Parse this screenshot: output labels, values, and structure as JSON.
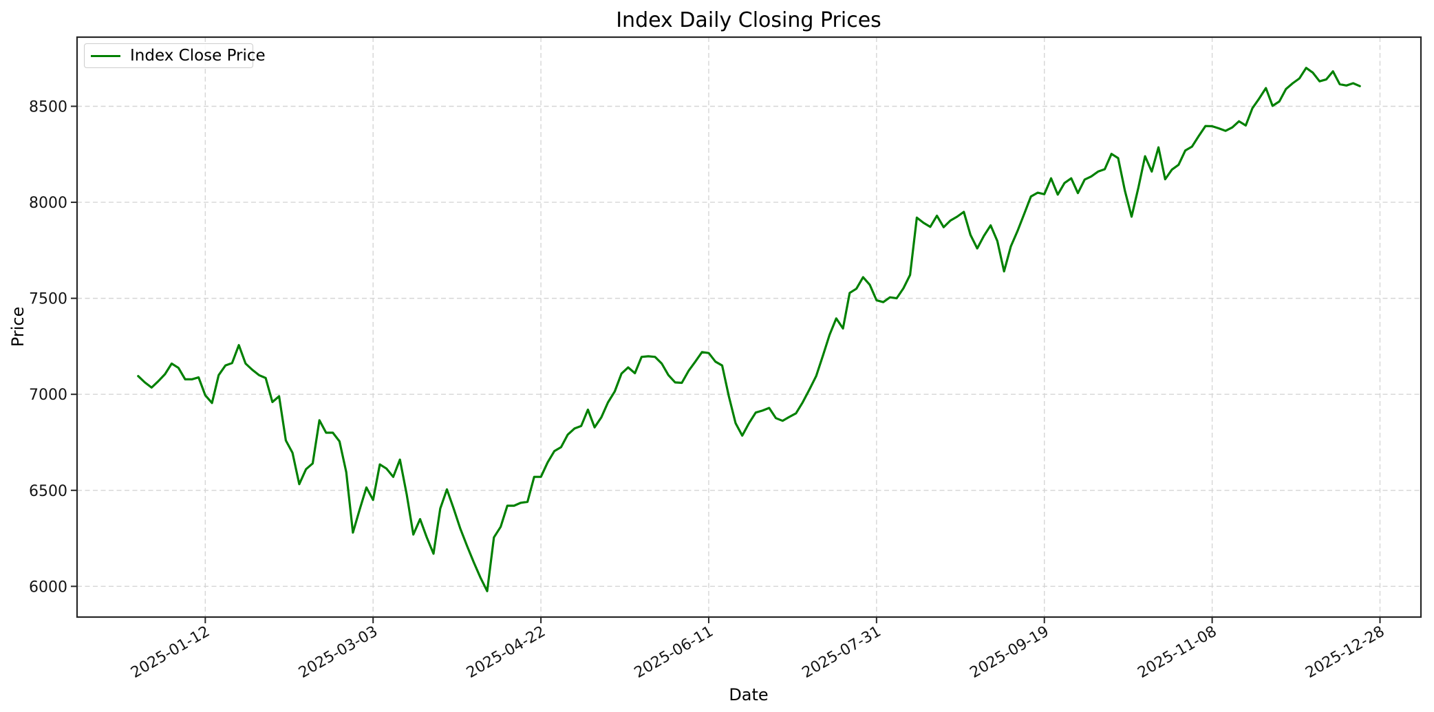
{
  "chart": {
    "title": "Index Daily Closing Prices",
    "xlabel": "Date",
    "ylabel": "Price",
    "legend": {
      "label": "Index Close Price"
    },
    "colors": {
      "line": "#008000",
      "grid": "#d5d5d5",
      "spine": "#262626",
      "tick_text": "#141414",
      "background": "#ffffff",
      "legend_border": "#cccccc"
    }
  },
  "chart_data": {
    "type": "line",
    "title": "Index Daily Closing Prices",
    "xlabel": "Date",
    "ylabel": "Price",
    "legend_position": "upper-left",
    "grid": "dashed-both-axes",
    "x_ticks": [
      "2025-01-12",
      "2025-03-03",
      "2025-04-22",
      "2025-06-11",
      "2025-07-31",
      "2025-09-19",
      "2025-11-08",
      "2025-12-28"
    ],
    "x_tick_rotation_deg": 30,
    "y_ticks": [
      6000,
      6500,
      7000,
      7500,
      8000,
      8500
    ],
    "ylim": [
      5840,
      8860
    ],
    "x_margin_frac": 0.05,
    "series": [
      {
        "name": "Index Close Price",
        "color": "#008000",
        "dates": [
          "2024-12-23",
          "2024-12-25",
          "2024-12-27",
          "2024-12-29",
          "2024-12-31",
          "2025-01-02",
          "2025-01-04",
          "2025-01-06",
          "2025-01-08",
          "2025-01-10",
          "2025-01-12",
          "2025-01-14",
          "2025-01-16",
          "2025-01-18",
          "2025-01-20",
          "2025-01-22",
          "2025-01-24",
          "2025-01-26",
          "2025-01-28",
          "2025-01-30",
          "2025-02-01",
          "2025-02-03",
          "2025-02-05",
          "2025-02-07",
          "2025-02-09",
          "2025-02-11",
          "2025-02-13",
          "2025-02-15",
          "2025-02-17",
          "2025-02-19",
          "2025-02-21",
          "2025-02-23",
          "2025-02-25",
          "2025-02-27",
          "2025-03-01",
          "2025-03-03",
          "2025-03-05",
          "2025-03-07",
          "2025-03-09",
          "2025-03-11",
          "2025-03-13",
          "2025-03-15",
          "2025-03-17",
          "2025-03-19",
          "2025-03-21",
          "2025-03-23",
          "2025-03-25",
          "2025-03-27",
          "2025-03-29",
          "2025-03-31",
          "2025-04-02",
          "2025-04-04",
          "2025-04-06",
          "2025-04-08",
          "2025-04-10",
          "2025-04-12",
          "2025-04-14",
          "2025-04-16",
          "2025-04-18",
          "2025-04-20",
          "2025-04-22",
          "2025-04-24",
          "2025-04-26",
          "2025-04-28",
          "2025-04-30",
          "2025-05-02",
          "2025-05-04",
          "2025-05-06",
          "2025-05-08",
          "2025-05-10",
          "2025-05-12",
          "2025-05-14",
          "2025-05-16",
          "2025-05-18",
          "2025-05-20",
          "2025-05-22",
          "2025-05-24",
          "2025-05-26",
          "2025-05-28",
          "2025-05-30",
          "2025-06-01",
          "2025-06-03",
          "2025-06-05",
          "2025-06-07",
          "2025-06-09",
          "2025-06-11",
          "2025-06-13",
          "2025-06-15",
          "2025-06-17",
          "2025-06-19",
          "2025-06-21",
          "2025-06-23",
          "2025-06-25",
          "2025-06-27",
          "2025-06-29",
          "2025-07-01",
          "2025-07-03",
          "2025-07-05",
          "2025-07-07",
          "2025-07-09",
          "2025-07-11",
          "2025-07-13",
          "2025-07-15",
          "2025-07-17",
          "2025-07-19",
          "2025-07-21",
          "2025-07-23",
          "2025-07-25",
          "2025-07-27",
          "2025-07-29",
          "2025-07-31",
          "2025-08-02",
          "2025-08-04",
          "2025-08-06",
          "2025-08-08",
          "2025-08-10",
          "2025-08-12",
          "2025-08-14",
          "2025-08-16",
          "2025-08-18",
          "2025-08-20",
          "2025-08-22",
          "2025-08-24",
          "2025-08-26",
          "2025-08-28",
          "2025-08-30",
          "2025-09-01",
          "2025-09-03",
          "2025-09-05",
          "2025-09-07",
          "2025-09-09",
          "2025-09-11",
          "2025-09-13",
          "2025-09-15",
          "2025-09-17",
          "2025-09-19",
          "2025-09-21",
          "2025-09-23",
          "2025-09-25",
          "2025-09-27",
          "2025-09-29",
          "2025-10-01",
          "2025-10-03",
          "2025-10-05",
          "2025-10-07",
          "2025-10-09",
          "2025-10-11",
          "2025-10-13",
          "2025-10-15",
          "2025-10-17",
          "2025-10-19",
          "2025-10-21",
          "2025-10-23",
          "2025-10-25",
          "2025-10-27",
          "2025-10-29",
          "2025-10-31",
          "2025-11-02",
          "2025-11-04",
          "2025-11-06",
          "2025-11-08",
          "2025-11-10",
          "2025-11-12",
          "2025-11-14",
          "2025-11-16",
          "2025-11-18",
          "2025-11-20",
          "2025-11-22",
          "2025-11-24",
          "2025-11-26",
          "2025-11-28",
          "2025-11-30",
          "2025-12-02",
          "2025-12-04",
          "2025-12-06",
          "2025-12-08",
          "2025-12-10",
          "2025-12-12",
          "2025-12-14",
          "2025-12-16",
          "2025-12-18",
          "2025-12-20",
          "2025-12-22"
        ],
        "values": [
          7095,
          7062,
          7035,
          7068,
          7105,
          7160,
          7138,
          7078,
          7078,
          7088,
          6995,
          6955,
          7100,
          7150,
          7163,
          7256,
          7160,
          7128,
          7100,
          7085,
          6960,
          6990,
          6760,
          6695,
          6532,
          6610,
          6640,
          6865,
          6800,
          6800,
          6755,
          6595,
          6280,
          6400,
          6515,
          6450,
          6635,
          6613,
          6570,
          6660,
          6480,
          6270,
          6350,
          6255,
          6170,
          6405,
          6505,
          6405,
          6300,
          6210,
          6125,
          6045,
          5975,
          6255,
          6310,
          6420,
          6420,
          6435,
          6440,
          6570,
          6570,
          6645,
          6704,
          6725,
          6790,
          6822,
          6835,
          6920,
          6828,
          6880,
          6958,
          7015,
          7108,
          7140,
          7110,
          7195,
          7198,
          7195,
          7160,
          7100,
          7062,
          7060,
          7122,
          7170,
          7220,
          7215,
          7170,
          7150,
          6990,
          6850,
          6785,
          6850,
          6905,
          6915,
          6929,
          6876,
          6862,
          6882,
          6901,
          6958,
          7025,
          7095,
          7200,
          7310,
          7395,
          7343,
          7528,
          7550,
          7610,
          7570,
          7490,
          7480,
          7505,
          7500,
          7552,
          7622,
          7920,
          7893,
          7872,
          7930,
          7870,
          7905,
          7925,
          7950,
          7830,
          7760,
          7825,
          7880,
          7798,
          7640,
          7770,
          7850,
          7940,
          8030,
          8050,
          8042,
          8125,
          8040,
          8100,
          8125,
          8048,
          8118,
          8135,
          8160,
          8172,
          8252,
          8230,
          8060,
          7925,
          8075,
          8240,
          8160,
          8286,
          8120,
          8170,
          8195,
          8270,
          8290,
          8345,
          8397,
          8396,
          8385,
          8372,
          8390,
          8422,
          8400,
          8490,
          8540,
          8595,
          8502,
          8525,
          8590,
          8620,
          8645,
          8700,
          8675,
          8630,
          8640,
          8682,
          8615,
          8608,
          8620,
          8605
        ]
      }
    ]
  }
}
